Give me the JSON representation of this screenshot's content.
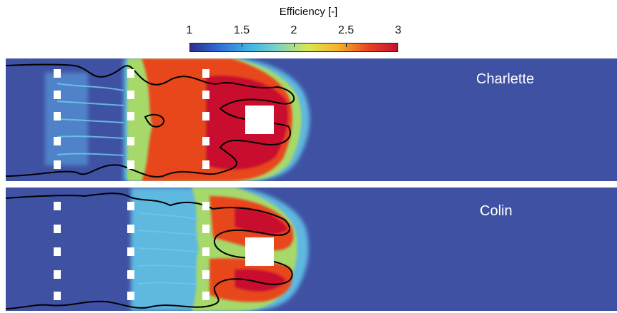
{
  "colorbar": {
    "title": "Efficiency [-]",
    "min": 1,
    "max": 3,
    "ticks": [
      "1",
      "1.5",
      "2",
      "2.5",
      "3"
    ],
    "tick_values": [
      1,
      1.5,
      2,
      2.5,
      3
    ],
    "colormap": [
      "#2b2f8f",
      "#2f6fd8",
      "#3fb4e6",
      "#7fd4c0",
      "#d9e84b",
      "#f6b12b",
      "#e8461f",
      "#c8102e"
    ]
  },
  "panels": [
    {
      "label": "Charlette"
    },
    {
      "label": "Colin"
    }
  ],
  "colors": {
    "background": "#3f51a3",
    "obstacle": "#ffffff",
    "flame_front": "#000000"
  }
}
